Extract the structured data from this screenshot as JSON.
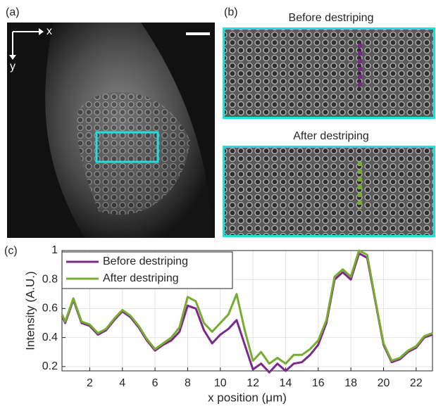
{
  "panels": {
    "a": {
      "label": "(a)",
      "x_axis": "x",
      "y_axis": "y"
    },
    "b": {
      "label": "(b)",
      "top_title": "Before destriping",
      "bottom_title": "After destriping"
    },
    "c": {
      "label": "(c)"
    }
  },
  "chart_data": {
    "type": "line",
    "x_label": "x position (μm)",
    "y_label": "Intensity (A.U.)",
    "x": [
      0.3,
      0.5,
      1.0,
      1.5,
      2.0,
      2.5,
      3.0,
      3.5,
      4.0,
      4.5,
      5.0,
      5.5,
      6.0,
      6.5,
      7.0,
      7.5,
      8.0,
      8.5,
      9.0,
      9.5,
      10.0,
      10.5,
      11.0,
      11.5,
      12.0,
      12.5,
      13.0,
      13.5,
      14.0,
      14.5,
      15.0,
      15.5,
      16.0,
      16.5,
      17.0,
      17.5,
      18.0,
      18.5,
      19.0,
      19.5,
      20.0,
      20.5,
      21.0,
      21.5,
      22.0,
      22.5,
      23.0
    ],
    "series": [
      {
        "name": "Before destriping",
        "color": "#7b2a8c",
        "values": [
          0.55,
          0.5,
          0.66,
          0.5,
          0.48,
          0.42,
          0.45,
          0.52,
          0.58,
          0.54,
          0.47,
          0.38,
          0.31,
          0.35,
          0.38,
          0.44,
          0.62,
          0.6,
          0.45,
          0.36,
          0.42,
          0.46,
          0.52,
          0.35,
          0.18,
          0.22,
          0.16,
          0.22,
          0.17,
          0.22,
          0.23,
          0.28,
          0.35,
          0.5,
          0.8,
          0.85,
          0.8,
          0.98,
          0.95,
          0.65,
          0.35,
          0.23,
          0.25,
          0.3,
          0.33,
          0.4,
          0.42
        ]
      },
      {
        "name": "After destriping",
        "color": "#77ac30",
        "values": [
          0.56,
          0.51,
          0.67,
          0.51,
          0.49,
          0.43,
          0.46,
          0.53,
          0.59,
          0.55,
          0.48,
          0.39,
          0.32,
          0.36,
          0.4,
          0.47,
          0.68,
          0.65,
          0.5,
          0.44,
          0.5,
          0.56,
          0.7,
          0.45,
          0.24,
          0.3,
          0.22,
          0.26,
          0.22,
          0.28,
          0.28,
          0.32,
          0.38,
          0.52,
          0.82,
          0.87,
          0.82,
          1.0,
          0.97,
          0.66,
          0.36,
          0.24,
          0.26,
          0.31,
          0.34,
          0.41,
          0.43
        ]
      }
    ],
    "xlim": [
      0.3,
      23
    ],
    "ylim": [
      0.17,
      1
    ],
    "xticks": [
      2,
      4,
      6,
      8,
      10,
      12,
      14,
      16,
      18,
      20,
      22
    ],
    "yticks": [
      0.2,
      0.4,
      0.6,
      0.8,
      1
    ],
    "grid": true,
    "legend": "upper left"
  }
}
